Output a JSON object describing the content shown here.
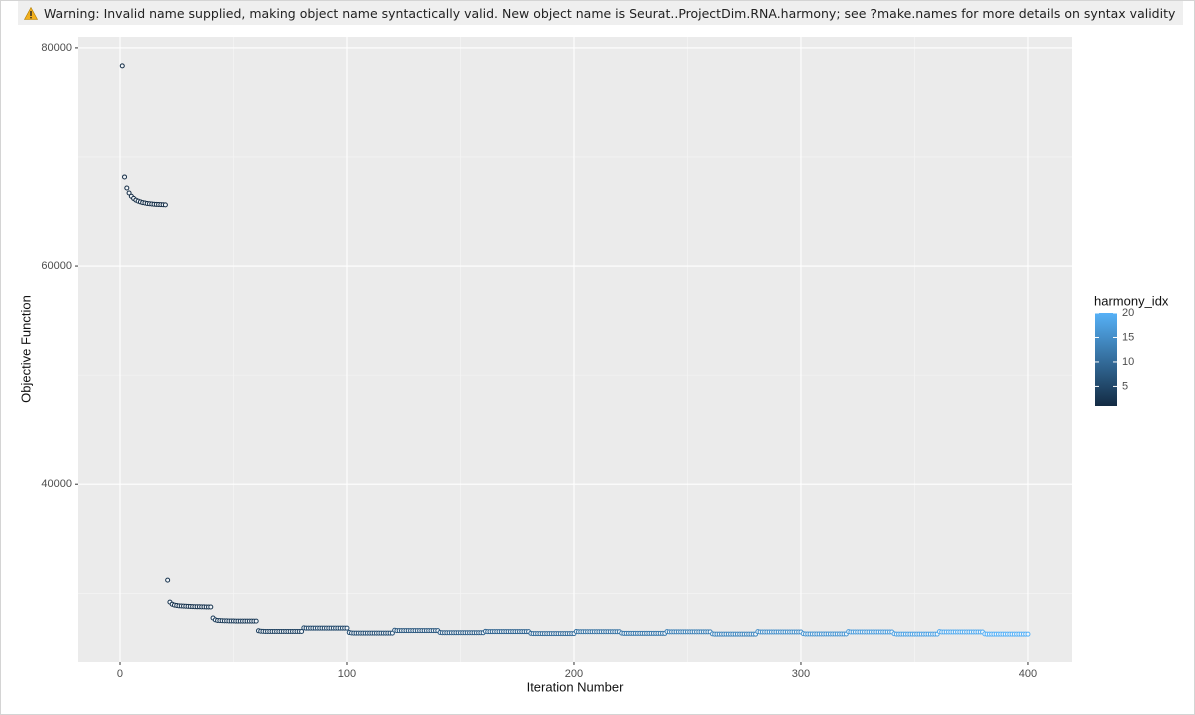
{
  "warning": {
    "text": "Warning: Invalid name supplied, making object name syntactically valid. New object name is Seurat..ProjectDim.RNA.harmony; see ?make.names for more details on syntax validity"
  },
  "chart_data": {
    "type": "scatter",
    "x_label": "Iteration Number",
    "y_label": "Objective Function",
    "xlim": [
      -18.5,
      419.4
    ],
    "xticks": [
      0,
      100,
      200,
      300,
      400
    ],
    "xminor": [
      50,
      150,
      250,
      350
    ],
    "ylim": [
      23700,
      81000
    ],
    "yticks": [
      40000,
      60000,
      80000
    ],
    "yminor": [
      30000,
      50000,
      70000
    ],
    "grid": true,
    "color_label": "harmony_idx",
    "color_low": "#132B43",
    "color_high": "#56B1F7",
    "color_lim": [
      1,
      20
    ],
    "color_ticks": [
      5,
      10,
      15,
      20
    ],
    "x": [
      1,
      2,
      3,
      4,
      5,
      6,
      7,
      8,
      9,
      10,
      11,
      12,
      13,
      14,
      15,
      16,
      17,
      18,
      19,
      20,
      21,
      22,
      23,
      24,
      25,
      26,
      27,
      28,
      29,
      30,
      31,
      32,
      33,
      34,
      35,
      36,
      37,
      38,
      39,
      40,
      41,
      42,
      43,
      44,
      45,
      46,
      47,
      48,
      49,
      50,
      51,
      52,
      53,
      54,
      55,
      56,
      57,
      58,
      59,
      60,
      61,
      62,
      63,
      64,
      65,
      66,
      67,
      68,
      69,
      70,
      71,
      72,
      73,
      74,
      75,
      76,
      77,
      78,
      79,
      80,
      81,
      82,
      83,
      84,
      85,
      86,
      87,
      88,
      89,
      90,
      91,
      92,
      93,
      94,
      95,
      96,
      97,
      98,
      99,
      100,
      101,
      102,
      103,
      104,
      105,
      106,
      107,
      108,
      109,
      110,
      111,
      112,
      113,
      114,
      115,
      116,
      117,
      118,
      119,
      120,
      121,
      122,
      123,
      124,
      125,
      126,
      127,
      128,
      129,
      130,
      131,
      132,
      133,
      134,
      135,
      136,
      137,
      138,
      139,
      140,
      141,
      142,
      143,
      144,
      145,
      146,
      147,
      148,
      149,
      150,
      151,
      152,
      153,
      154,
      155,
      156,
      157,
      158,
      159,
      160,
      161,
      162,
      163,
      164,
      165,
      166,
      167,
      168,
      169,
      170,
      171,
      172,
      173,
      174,
      175,
      176,
      177,
      178,
      179,
      180,
      181,
      182,
      183,
      184,
      185,
      186,
      187,
      188,
      189,
      190,
      191,
      192,
      193,
      194,
      195,
      196,
      197,
      198,
      199,
      200,
      201,
      202,
      203,
      204,
      205,
      206,
      207,
      208,
      209,
      210,
      211,
      212,
      213,
      214,
      215,
      216,
      217,
      218,
      219,
      220,
      221,
      222,
      223,
      224,
      225,
      226,
      227,
      228,
      229,
      230,
      231,
      232,
      233,
      234,
      235,
      236,
      237,
      238,
      239,
      240,
      241,
      242,
      243,
      244,
      245,
      246,
      247,
      248,
      249,
      250,
      251,
      252,
      253,
      254,
      255,
      256,
      257,
      258,
      259,
      260,
      261,
      262,
      263,
      264,
      265,
      266,
      267,
      268,
      269,
      270,
      271,
      272,
      273,
      274,
      275,
      276,
      277,
      278,
      279,
      280,
      281,
      282,
      283,
      284,
      285,
      286,
      287,
      288,
      289,
      290,
      291,
      292,
      293,
      294,
      295,
      296,
      297,
      298,
      299,
      300,
      301,
      302,
      303,
      304,
      305,
      306,
      307,
      308,
      309,
      310,
      311,
      312,
      313,
      314,
      315,
      316,
      317,
      318,
      319,
      320,
      321,
      322,
      323,
      324,
      325,
      326,
      327,
      328,
      329,
      330,
      331,
      332,
      333,
      334,
      335,
      336,
      337,
      338,
      339,
      340,
      341,
      342,
      343,
      344,
      345,
      346,
      347,
      348,
      349,
      350,
      351,
      352,
      353,
      354,
      355,
      356,
      357,
      358,
      359,
      360,
      361,
      362,
      363,
      364,
      365,
      366,
      367,
      368,
      369,
      370,
      371,
      372,
      373,
      374,
      375,
      376,
      377,
      378,
      379,
      380,
      381,
      382,
      383,
      384,
      385,
      386,
      387,
      388,
      389,
      390,
      391,
      392,
      393,
      394,
      395,
      396,
      397,
      398,
      399,
      400
    ],
    "values": [
      78350,
      68170,
      67160,
      66700,
      66400,
      66200,
      66050,
      65950,
      65880,
      65820,
      65780,
      65740,
      65710,
      65690,
      65670,
      65650,
      65640,
      65630,
      65620,
      65610,
      31210,
      29190,
      29000,
      28920,
      28880,
      28850,
      28830,
      28820,
      28810,
      28800,
      28790,
      28780,
      28770,
      28760,
      28760,
      28750,
      28750,
      28740,
      28740,
      28740,
      27730,
      27560,
      27510,
      27490,
      27480,
      27470,
      27470,
      27460,
      27460,
      27460,
      27450,
      27450,
      27450,
      27450,
      27450,
      27450,
      27450,
      27450,
      27450,
      27450,
      26560,
      26520,
      26510,
      26500,
      26500,
      26500,
      26500,
      26500,
      26500,
      26500,
      26500,
      26500,
      26500,
      26500,
      26500,
      26500,
      26500,
      26500,
      26500,
      26500,
      26830,
      26800,
      26800,
      26800,
      26800,
      26800,
      26800,
      26800,
      26800,
      26800,
      26800,
      26800,
      26800,
      26800,
      26800,
      26800,
      26800,
      26800,
      26800,
      26800,
      26400,
      26360,
      26350,
      26350,
      26350,
      26350,
      26350,
      26350,
      26350,
      26350,
      26350,
      26350,
      26350,
      26350,
      26350,
      26350,
      26350,
      26350,
      26350,
      26350,
      26610,
      26580,
      26580,
      26580,
      26580,
      26580,
      26580,
      26580,
      26580,
      26580,
      26580,
      26580,
      26580,
      26580,
      26580,
      26580,
      26580,
      26580,
      26580,
      26580,
      26410,
      26380,
      26380,
      26380,
      26380,
      26380,
      26380,
      26380,
      26380,
      26380,
      26380,
      26380,
      26380,
      26380,
      26380,
      26380,
      26380,
      26380,
      26380,
      26380,
      26510,
      26480,
      26480,
      26480,
      26480,
      26480,
      26480,
      26480,
      26480,
      26480,
      26480,
      26480,
      26480,
      26480,
      26480,
      26480,
      26480,
      26480,
      26480,
      26480,
      26330,
      26300,
      26300,
      26300,
      26300,
      26300,
      26300,
      26300,
      26300,
      26300,
      26300,
      26300,
      26300,
      26300,
      26300,
      26300,
      26300,
      26300,
      26300,
      26300,
      26500,
      26470,
      26470,
      26470,
      26470,
      26470,
      26470,
      26470,
      26470,
      26470,
      26470,
      26470,
      26470,
      26470,
      26470,
      26470,
      26470,
      26470,
      26470,
      26470,
      26350,
      26320,
      26320,
      26320,
      26320,
      26320,
      26320,
      26320,
      26320,
      26320,
      26320,
      26320,
      26320,
      26320,
      26320,
      26320,
      26320,
      26320,
      26320,
      26320,
      26490,
      26460,
      26460,
      26460,
      26460,
      26460,
      26460,
      26460,
      26460,
      26460,
      26460,
      26460,
      26460,
      26460,
      26460,
      26460,
      26460,
      26460,
      26460,
      26460,
      26280,
      26250,
      26250,
      26250,
      26250,
      26250,
      26250,
      26250,
      26250,
      26250,
      26250,
      26250,
      26250,
      26250,
      26250,
      26250,
      26250,
      26250,
      26250,
      26250,
      26480,
      26450,
      26450,
      26450,
      26450,
      26450,
      26450,
      26450,
      26450,
      26450,
      26450,
      26450,
      26450,
      26450,
      26450,
      26450,
      26450,
      26450,
      26450,
      26450,
      26300,
      26270,
      26270,
      26270,
      26270,
      26270,
      26270,
      26270,
      26270,
      26270,
      26270,
      26270,
      26270,
      26270,
      26270,
      26270,
      26270,
      26270,
      26270,
      26270,
      26480,
      26450,
      26450,
      26450,
      26450,
      26450,
      26450,
      26450,
      26450,
      26450,
      26450,
      26450,
      26450,
      26450,
      26450,
      26450,
      26450,
      26450,
      26450,
      26450,
      26290,
      26260,
      26260,
      26260,
      26260,
      26260,
      26260,
      26260,
      26260,
      26260,
      26260,
      26260,
      26260,
      26260,
      26260,
      26260,
      26260,
      26260,
      26260,
      26260,
      26480,
      26450,
      26450,
      26450,
      26450,
      26450,
      26450,
      26450,
      26450,
      26450,
      26450,
      26450,
      26450,
      26450,
      26450,
      26450,
      26450,
      26450,
      26450,
      26450,
      26280,
      26250,
      26250,
      26250,
      26250,
      26250,
      26250,
      26250,
      26250,
      26250,
      26250,
      26250,
      26250,
      26250,
      26250,
      26250,
      26250,
      26250,
      26250,
      26250
    ],
    "color_values": [
      1,
      1,
      1,
      1,
      1,
      1,
      1,
      1,
      1,
      1,
      1,
      1,
      1,
      1,
      1,
      1,
      1,
      1,
      1,
      1,
      2,
      2,
      2,
      2,
      2,
      2,
      2,
      2,
      2,
      2,
      2,
      2,
      2,
      2,
      2,
      2,
      2,
      2,
      2,
      2,
      3,
      3,
      3,
      3,
      3,
      3,
      3,
      3,
      3,
      3,
      3,
      3,
      3,
      3,
      3,
      3,
      3,
      3,
      3,
      3,
      4,
      4,
      4,
      4,
      4,
      4,
      4,
      4,
      4,
      4,
      4,
      4,
      4,
      4,
      4,
      4,
      4,
      4,
      4,
      4,
      5,
      5,
      5,
      5,
      5,
      5,
      5,
      5,
      5,
      5,
      5,
      5,
      5,
      5,
      5,
      5,
      5,
      5,
      5,
      5,
      6,
      6,
      6,
      6,
      6,
      6,
      6,
      6,
      6,
      6,
      6,
      6,
      6,
      6,
      6,
      6,
      6,
      6,
      6,
      6,
      7,
      7,
      7,
      7,
      7,
      7,
      7,
      7,
      7,
      7,
      7,
      7,
      7,
      7,
      7,
      7,
      7,
      7,
      7,
      7,
      8,
      8,
      8,
      8,
      8,
      8,
      8,
      8,
      8,
      8,
      8,
      8,
      8,
      8,
      8,
      8,
      8,
      8,
      8,
      8,
      9,
      9,
      9,
      9,
      9,
      9,
      9,
      9,
      9,
      9,
      9,
      9,
      9,
      9,
      9,
      9,
      9,
      9,
      9,
      9,
      10,
      10,
      10,
      10,
      10,
      10,
      10,
      10,
      10,
      10,
      10,
      10,
      10,
      10,
      10,
      10,
      10,
      10,
      10,
      10,
      11,
      11,
      11,
      11,
      11,
      11,
      11,
      11,
      11,
      11,
      11,
      11,
      11,
      11,
      11,
      11,
      11,
      11,
      11,
      11,
      12,
      12,
      12,
      12,
      12,
      12,
      12,
      12,
      12,
      12,
      12,
      12,
      12,
      12,
      12,
      12,
      12,
      12,
      12,
      12,
      13,
      13,
      13,
      13,
      13,
      13,
      13,
      13,
      13,
      13,
      13,
      13,
      13,
      13,
      13,
      13,
      13,
      13,
      13,
      13,
      14,
      14,
      14,
      14,
      14,
      14,
      14,
      14,
      14,
      14,
      14,
      14,
      14,
      14,
      14,
      14,
      14,
      14,
      14,
      14,
      15,
      15,
      15,
      15,
      15,
      15,
      15,
      15,
      15,
      15,
      15,
      15,
      15,
      15,
      15,
      15,
      15,
      15,
      15,
      15,
      16,
      16,
      16,
      16,
      16,
      16,
      16,
      16,
      16,
      16,
      16,
      16,
      16,
      16,
      16,
      16,
      16,
      16,
      16,
      16,
      17,
      17,
      17,
      17,
      17,
      17,
      17,
      17,
      17,
      17,
      17,
      17,
      17,
      17,
      17,
      17,
      17,
      17,
      17,
      17,
      18,
      18,
      18,
      18,
      18,
      18,
      18,
      18,
      18,
      18,
      18,
      18,
      18,
      18,
      18,
      18,
      18,
      18,
      18,
      18,
      19,
      19,
      19,
      19,
      19,
      19,
      19,
      19,
      19,
      19,
      19,
      19,
      19,
      19,
      19,
      19,
      19,
      19,
      19,
      19,
      20,
      20,
      20,
      20,
      20,
      20,
      20,
      20,
      20,
      20,
      20,
      20,
      20,
      20,
      20,
      20,
      20,
      20,
      20,
      20
    ]
  }
}
